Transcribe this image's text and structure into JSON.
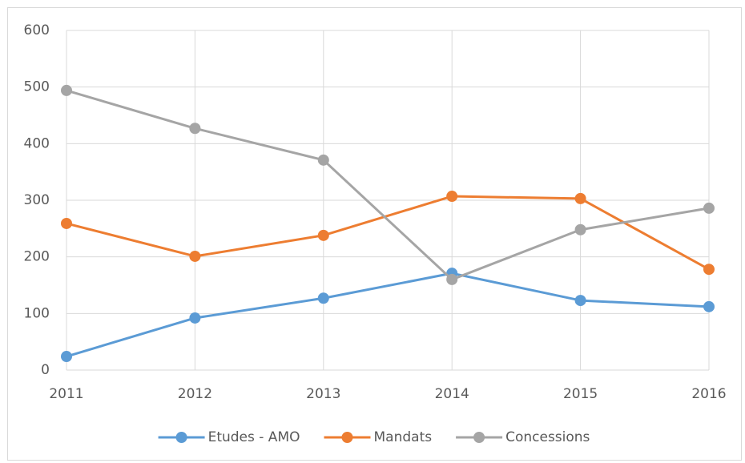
{
  "chart_data": {
    "type": "line",
    "categories": [
      "2011",
      "2012",
      "2013",
      "2014",
      "2015",
      "2016"
    ],
    "series": [
      {
        "name": "Etudes - AMO",
        "color": "#5b9bd5",
        "values": [
          24,
          92,
          127,
          171,
          123,
          112
        ]
      },
      {
        "name": "Mandats",
        "color": "#ed7d31",
        "values": [
          259,
          201,
          238,
          307,
          303,
          178
        ]
      },
      {
        "name": "Concessions",
        "color": "#a5a5a5",
        "values": [
          494,
          427,
          371,
          160,
          248,
          286
        ]
      }
    ],
    "ylim": [
      0,
      600
    ],
    "yticks": [
      0,
      100,
      200,
      300,
      400,
      500,
      600
    ],
    "grid": true,
    "legend": "bottom"
  }
}
